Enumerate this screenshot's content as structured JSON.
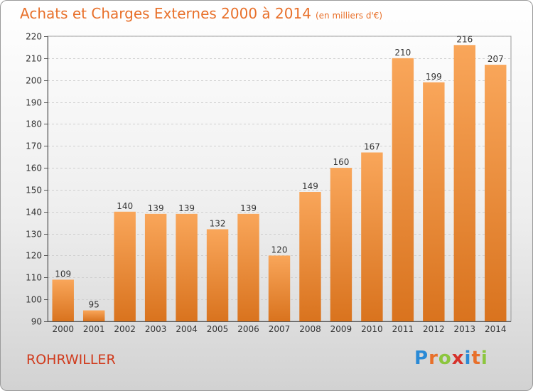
{
  "chart_data": {
    "type": "bar",
    "title": "Achats et Charges Externes 2000 à 2014",
    "subtitle": "(en milliers d'€)",
    "categories": [
      "2000",
      "2001",
      "2002",
      "2003",
      "2004",
      "2005",
      "2006",
      "2007",
      "2008",
      "2009",
      "2010",
      "2011",
      "2012",
      "2013",
      "2014"
    ],
    "values": [
      109,
      95,
      140,
      139,
      139,
      132,
      139,
      120,
      149,
      160,
      167,
      210,
      199,
      216,
      207
    ],
    "ylim": [
      90,
      220
    ],
    "yticks": [
      90,
      100,
      110,
      120,
      130,
      140,
      150,
      160,
      170,
      180,
      190,
      200,
      210,
      220
    ],
    "grid": true,
    "bar_color_top": "#f9a65a",
    "bar_color_bottom": "#d9731e"
  },
  "place_label": "ROHRWILLER",
  "logo": {
    "letters": [
      "P",
      "r",
      "o",
      "x",
      "i",
      "t",
      "i"
    ],
    "colors": [
      "#2a8ad6",
      "#e8702a",
      "#8cc63e",
      "#d6322b",
      "#2a8ad6",
      "#e8702a",
      "#8cc63e"
    ]
  }
}
